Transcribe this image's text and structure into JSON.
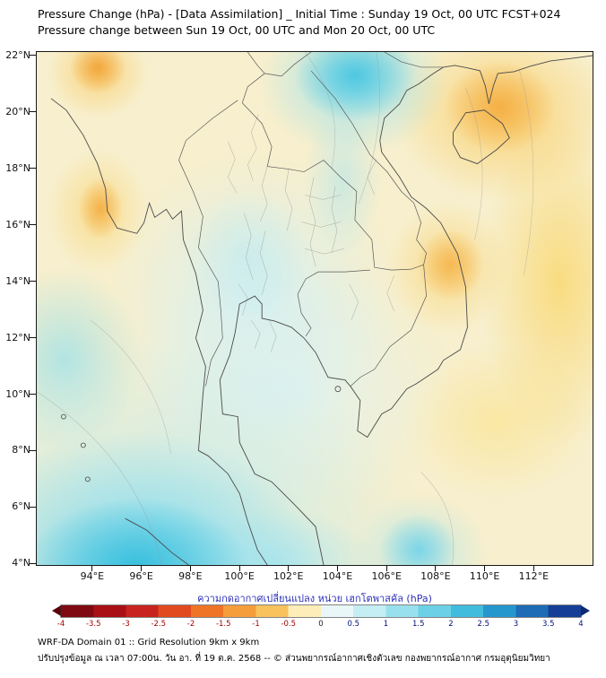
{
  "header": {
    "title_line1": "Pressure Change (hPa) - [Data Assimilation] _ Initial Time : Sunday 19 Oct, 00 UTC FCST+024",
    "title_line2": "Pressure change between Sun 19 Oct, 00 UTC and Mon 20 Oct, 00 UTC"
  },
  "axes": {
    "lat_range": [
      3.95,
      22.15
    ],
    "lon_range": [
      91.7,
      114.4
    ],
    "lat_ticks": [
      {
        "label": "22°N",
        "value": 22
      },
      {
        "label": "20°N",
        "value": 20
      },
      {
        "label": "18°N",
        "value": 18
      },
      {
        "label": "16°N",
        "value": 16
      },
      {
        "label": "14°N",
        "value": 14
      },
      {
        "label": "12°N",
        "value": 12
      },
      {
        "label": "10°N",
        "value": 10
      },
      {
        "label": "8°N",
        "value": 8
      },
      {
        "label": "6°N",
        "value": 6
      },
      {
        "label": "4°N",
        "value": 4
      }
    ],
    "lon_ticks": [
      {
        "label": "94°E",
        "value": 94
      },
      {
        "label": "96°E",
        "value": 96
      },
      {
        "label": "98°E",
        "value": 98
      },
      {
        "label": "100°E",
        "value": 100
      },
      {
        "label": "102°E",
        "value": 102
      },
      {
        "label": "104°E",
        "value": 104
      },
      {
        "label": "106°E",
        "value": 106
      },
      {
        "label": "108°E",
        "value": 108
      },
      {
        "label": "110°E",
        "value": 110
      },
      {
        "label": "112°E",
        "value": 112
      }
    ]
  },
  "colorbar": {
    "label": "ความกดอากาศเปลี่ยนแปลง หน่วย เฮกโตพาสคัล (hPa)",
    "label_color": "#2a2fb8",
    "ticks": [
      "-4",
      "-3.5",
      "-3",
      "-2.5",
      "-2",
      "-1.5",
      "-1",
      "-0.5",
      "0",
      "0.5",
      "1",
      "1.5",
      "2",
      "2.5",
      "3",
      "3.5",
      "4"
    ],
    "segment_colors": [
      "#7f0a12",
      "#a81016",
      "#c8231f",
      "#e04a1e",
      "#ef7426",
      "#f59d3b",
      "#f9c25c",
      "#fdedb8",
      "#e9f7f8",
      "#c5edf4",
      "#99e0ee",
      "#6cd0e6",
      "#42bcdc",
      "#2697cd",
      "#1d6cb5",
      "#153f96"
    ],
    "left_arrow_color": "#5c0008",
    "right_arrow_color": "#0d2a70",
    "negative_tick_color": "#a80000",
    "zero_tick_color": "#222222",
    "positive_tick_color": "#00107a"
  },
  "footer": {
    "line1": "WRF-DA Domain 01 :: Grid Resolution 9km x 9km",
    "line2": "ปรับปรุงข้อมูล ณ เวลา 07:00น. วัน อา. ที่ 19 ต.ค. 2568 -- © ส่วนพยากรณ์อากาศเชิงตัวเลข กองพยากรณ์อากาศ กรมอุตุนิยมวิทยา"
  },
  "chart_data": {
    "type": "heatmap",
    "title": "Pressure Change (hPa) - [Data Assimilation] _ Initial Time : Sunday 19 Oct, 00 UTC FCST+024",
    "subtitle": "Pressure change between Sun 19 Oct, 00 UTC and Mon 20 Oct, 00 UTC",
    "units": "hPa",
    "x_tick_labels_deg_e": [
      94,
      96,
      98,
      100,
      102,
      104,
      106,
      108,
      110,
      112
    ],
    "y_tick_labels_deg_n": [
      4,
      6,
      8,
      10,
      12,
      14,
      16,
      18,
      20,
      22
    ],
    "colorbar_range": [
      -4,
      4
    ],
    "colorbar_step": 0.5,
    "colorbar_orientation": "horizontal",
    "legend_position": "bottom",
    "grid": false,
    "grid_estimate": {
      "lons": [
        94,
        96,
        98,
        100,
        102,
        104,
        106,
        108,
        110,
        112
      ],
      "lats": [
        22,
        20,
        18,
        16,
        14,
        12,
        10,
        8,
        6,
        4
      ],
      "values_hpa": [
        [
          -1.5,
          -0.5,
          -0.3,
          -0.2,
          0.2,
          1.2,
          0.5,
          -0.5,
          -1.5,
          -1.0
        ],
        [
          -0.5,
          -0.2,
          -0.2,
          -0.1,
          0.3,
          1.0,
          0.0,
          -1.0,
          -2.0,
          -1.5
        ],
        [
          -0.8,
          -0.3,
          0.0,
          0.0,
          0.3,
          0.6,
          -0.3,
          -1.0,
          -1.5,
          -1.5
        ],
        [
          -1.5,
          -0.5,
          0.0,
          0.2,
          0.3,
          0.5,
          -0.3,
          -1.0,
          -1.2,
          -1.5
        ],
        [
          -0.5,
          0.0,
          0.3,
          0.4,
          0.3,
          0.4,
          -0.3,
          -1.5,
          -1.0,
          -1.2
        ],
        [
          0.0,
          0.3,
          0.4,
          0.4,
          0.2,
          0.0,
          -0.5,
          -0.8,
          -0.8,
          -1.0
        ],
        [
          0.5,
          0.5,
          0.5,
          0.4,
          0.2,
          -0.2,
          -0.5,
          -0.5,
          -0.8,
          -0.8
        ],
        [
          1.0,
          1.0,
          0.7,
          0.5,
          0.3,
          0.0,
          -0.3,
          -0.3,
          -0.5,
          -0.5
        ],
        [
          1.5,
          1.5,
          1.0,
          0.7,
          0.5,
          0.2,
          0.3,
          -0.3,
          -0.5,
          -0.5
        ],
        [
          1.8,
          2.0,
          1.2,
          0.8,
          0.6,
          0.3,
          0.8,
          0.5,
          -0.3,
          -0.5
        ]
      ]
    },
    "features": [
      {
        "name": "pressure-rise-maximum-andaman-sumatra",
        "lon": 96.0,
        "lat": 4.0,
        "value_hpa": 2.0,
        "color": "#35bfdd"
      },
      {
        "name": "pressure-rise-blob-north-laos-vietnam",
        "lon": 104.7,
        "lat": 21.3,
        "value_hpa": 1.2,
        "color": "#49c6e0"
      },
      {
        "name": "pressure-rise-patch-south-vietnam-sea",
        "lon": 107.3,
        "lat": 4.3,
        "value_hpa": 0.8,
        "color": "#6fd2e8"
      },
      {
        "name": "pressure-fall-maximum-gulf-of-tonkin",
        "lon": 110.5,
        "lat": 20.0,
        "value_hpa": -2.0,
        "color": "#f4ae44"
      },
      {
        "name": "pressure-fall-vietnam-coast",
        "lon": 108.6,
        "lat": 14.6,
        "value_hpa": -1.5,
        "color": "#f5b54d"
      },
      {
        "name": "pressure-fall-west-myanmar",
        "lon": 94.3,
        "lat": 16.6,
        "value_hpa": -1.5,
        "color": "#f3ad42"
      },
      {
        "name": "pressure-fall-northwest-corner",
        "lon": 94.2,
        "lat": 21.6,
        "value_hpa": -1.5,
        "color": "#f2a53a"
      },
      {
        "name": "near-zero-central-thailand",
        "lon": 100.5,
        "lat": 13.5,
        "value_hpa": 0.2,
        "color": "#d4f0f3"
      }
    ]
  }
}
